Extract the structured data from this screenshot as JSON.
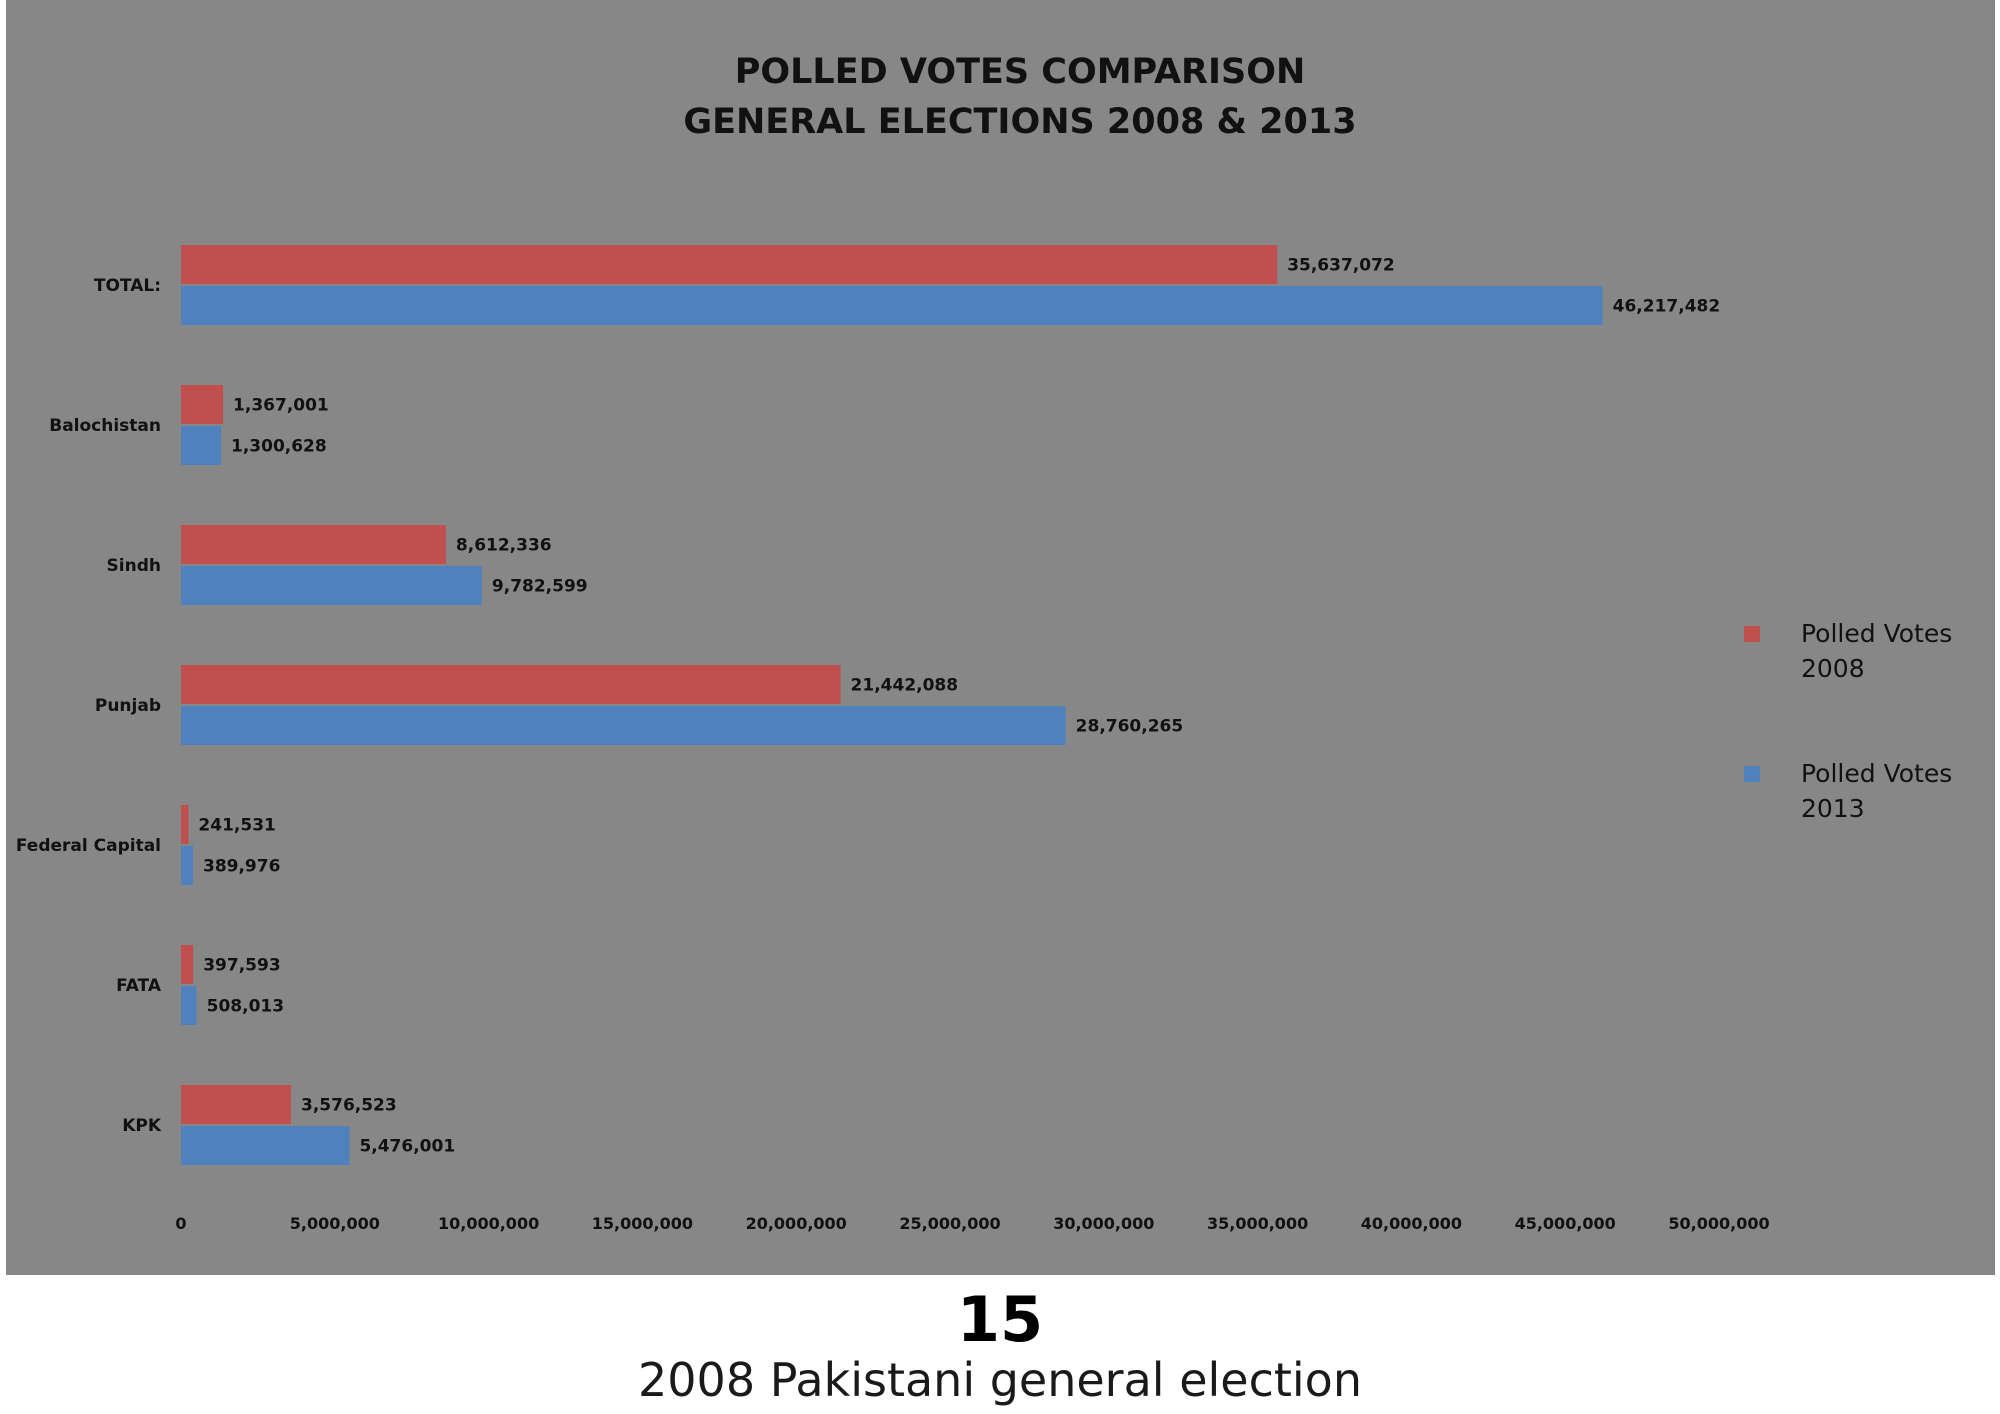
{
  "chart_data": {
    "type": "bar",
    "orientation": "horizontal",
    "title": [
      "POLLED VOTES COMPARISON",
      "GENERAL ELECTIONS 2008 & 2013"
    ],
    "categories": [
      "TOTAL:",
      "Balochistan",
      "Sindh",
      "Punjab",
      "Federal Capital",
      "FATA",
      "KPK"
    ],
    "series": [
      {
        "name": "Polled Votes 2008",
        "legend_lines": [
          "Polled Votes",
          "2008"
        ],
        "color": "#c0504d",
        "values": [
          35637072,
          1367001,
          8612336,
          21442088,
          241531,
          397593,
          3576523
        ],
        "labels": [
          "35,637,072",
          "1,367,001",
          "8,612,336",
          "21,442,088",
          "241,531",
          "397,593",
          "3,576,523"
        ]
      },
      {
        "name": "Polled Votes 2013",
        "legend_lines": [
          "Polled Votes",
          "2013"
        ],
        "color": "#4f81bd",
        "values": [
          46217482,
          1300628,
          9782599,
          28760265,
          389976,
          508013,
          5476001
        ],
        "labels": [
          "46,217,482",
          "1,300,628",
          "9,782,599",
          "28,760,265",
          "389,976",
          "508,013",
          "5,476,001"
        ]
      }
    ],
    "xlim": [
      0,
      50000000
    ],
    "x_ticks": [
      0,
      5000000,
      10000000,
      15000000,
      20000000,
      25000000,
      30000000,
      35000000,
      40000000,
      45000000,
      50000000
    ],
    "x_tick_labels": [
      "0",
      "5,000,000",
      "10,000,000",
      "15,000,000",
      "20,000,000",
      "25,000,000",
      "30,000,000",
      "35,000,000",
      "40,000,000",
      "45,000,000",
      "50,000,000"
    ],
    "grid": false,
    "legend_position": "right",
    "background": "#878787"
  },
  "footer": {
    "page_number": "15",
    "caption": "2008 Pakistani general election"
  }
}
